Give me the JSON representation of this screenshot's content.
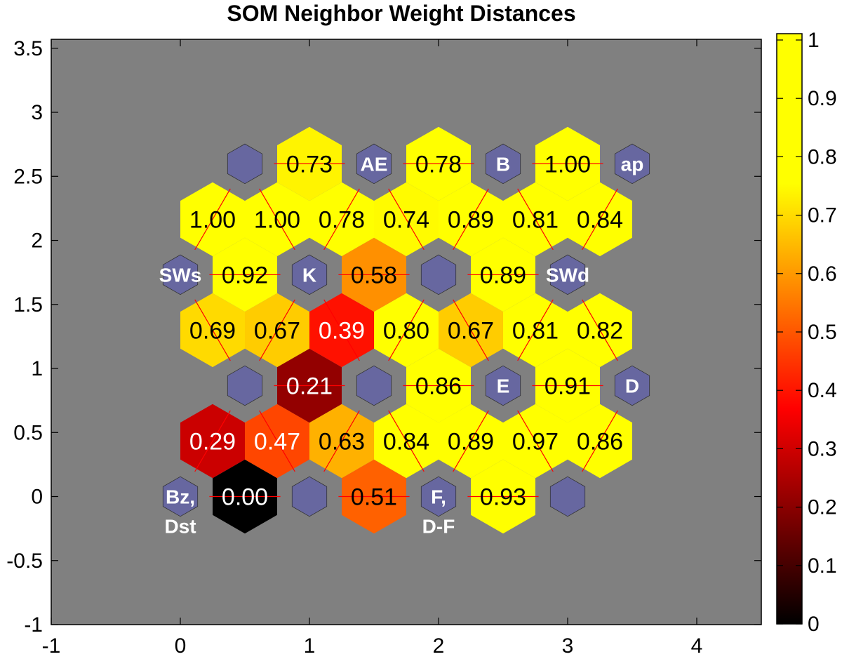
{
  "chart_data": {
    "type": "heatmap",
    "title": "SOM Neighbor Weight Distances",
    "xlim": [
      -1,
      4.5
    ],
    "ylim": [
      -1,
      3.57
    ],
    "x_ticks": [
      "-1",
      "0",
      "1",
      "2",
      "3",
      "4"
    ],
    "y_ticks": [
      "-1",
      "-0.5",
      "0",
      "0.5",
      "1",
      "1.5",
      "2",
      "2.5",
      "3",
      "3.5"
    ],
    "colormap": "hot",
    "colorbar": {
      "min": 0,
      "max": 1,
      "ticks": [
        "0",
        "0.1",
        "0.2",
        "0.3",
        "0.4",
        "0.5",
        "0.6",
        "0.7",
        "0.8",
        "0.9",
        "1"
      ]
    },
    "neurons": [
      {
        "x": 0,
        "y": 0,
        "label": "Bz,\nDst"
      },
      {
        "x": 1,
        "y": 0,
        "label": ""
      },
      {
        "x": 2,
        "y": 0,
        "label": "F,\nD-F"
      },
      {
        "x": 3,
        "y": 0,
        "label": ""
      },
      {
        "x": 0.5,
        "y": 0.866,
        "label": ""
      },
      {
        "x": 1.5,
        "y": 0.866,
        "label": ""
      },
      {
        "x": 2.5,
        "y": 0.866,
        "label": "E"
      },
      {
        "x": 3.5,
        "y": 0.866,
        "label": "D"
      },
      {
        "x": 0,
        "y": 1.732,
        "label": "SWs"
      },
      {
        "x": 1,
        "y": 1.732,
        "label": "K"
      },
      {
        "x": 2,
        "y": 1.732,
        "label": ""
      },
      {
        "x": 3,
        "y": 1.732,
        "label": "SWd"
      },
      {
        "x": 0.5,
        "y": 2.598,
        "label": ""
      },
      {
        "x": 1.5,
        "y": 2.598,
        "label": "AE"
      },
      {
        "x": 2.5,
        "y": 2.598,
        "label": "B"
      },
      {
        "x": 3.5,
        "y": 2.598,
        "label": "ap"
      }
    ],
    "distances": [
      {
        "x": 0.5,
        "y": 0,
        "value": 0.0,
        "label": "0.00"
      },
      {
        "x": 1.5,
        "y": 0,
        "value": 0.51,
        "label": "0.51"
      },
      {
        "x": 2.5,
        "y": 0,
        "value": 0.93,
        "label": "0.93"
      },
      {
        "x": 0.25,
        "y": 0.433,
        "value": 0.29,
        "label": "0.29"
      },
      {
        "x": 0.75,
        "y": 0.433,
        "value": 0.47,
        "label": "0.47"
      },
      {
        "x": 1.25,
        "y": 0.433,
        "value": 0.63,
        "label": "0.63"
      },
      {
        "x": 1.75,
        "y": 0.433,
        "value": 0.84,
        "label": "0.84"
      },
      {
        "x": 2.25,
        "y": 0.433,
        "value": 0.89,
        "label": "0.89"
      },
      {
        "x": 2.75,
        "y": 0.433,
        "value": 0.97,
        "label": "0.97"
      },
      {
        "x": 3.25,
        "y": 0.433,
        "value": 0.86,
        "label": "0.86"
      },
      {
        "x": 1,
        "y": 0.866,
        "value": 0.21,
        "label": "0.21"
      },
      {
        "x": 2,
        "y": 0.866,
        "value": 0.86,
        "label": "0.86"
      },
      {
        "x": 3,
        "y": 0.866,
        "value": 0.91,
        "label": "0.91"
      },
      {
        "x": 0.25,
        "y": 1.299,
        "value": 0.69,
        "label": "0.69"
      },
      {
        "x": 0.75,
        "y": 1.299,
        "value": 0.67,
        "label": "0.67"
      },
      {
        "x": 1.25,
        "y": 1.299,
        "value": 0.39,
        "label": "0.39"
      },
      {
        "x": 1.75,
        "y": 1.299,
        "value": 0.8,
        "label": "0.80"
      },
      {
        "x": 2.25,
        "y": 1.299,
        "value": 0.67,
        "label": "0.67"
      },
      {
        "x": 2.75,
        "y": 1.299,
        "value": 0.81,
        "label": "0.81"
      },
      {
        "x": 3.25,
        "y": 1.299,
        "value": 0.82,
        "label": "0.82"
      },
      {
        "x": 0.5,
        "y": 1.732,
        "value": 0.92,
        "label": "0.92"
      },
      {
        "x": 1.5,
        "y": 1.732,
        "value": 0.58,
        "label": "0.58"
      },
      {
        "x": 2.5,
        "y": 1.732,
        "value": 0.89,
        "label": "0.89"
      },
      {
        "x": 0.25,
        "y": 2.165,
        "value": 1.0,
        "label": "1.00"
      },
      {
        "x": 0.75,
        "y": 2.165,
        "value": 1.0,
        "label": "1.00"
      },
      {
        "x": 1.25,
        "y": 2.165,
        "value": 0.78,
        "label": "0.78"
      },
      {
        "x": 1.75,
        "y": 2.165,
        "value": 0.74,
        "label": "0.74"
      },
      {
        "x": 2.25,
        "y": 2.165,
        "value": 0.89,
        "label": "0.89"
      },
      {
        "x": 2.75,
        "y": 2.165,
        "value": 0.81,
        "label": "0.81"
      },
      {
        "x": 3.25,
        "y": 2.165,
        "value": 0.84,
        "label": "0.84"
      },
      {
        "x": 1,
        "y": 2.598,
        "value": 0.73,
        "label": "0.73"
      },
      {
        "x": 2,
        "y": 2.598,
        "value": 0.78,
        "label": "0.78"
      },
      {
        "x": 3,
        "y": 2.598,
        "value": 1.0,
        "label": "1.00"
      }
    ],
    "colors": {
      "background": "#808080",
      "neuron": "#6767A0",
      "neuron_label": "#FFFFFF",
      "connection_line": "#FF0000"
    }
  }
}
